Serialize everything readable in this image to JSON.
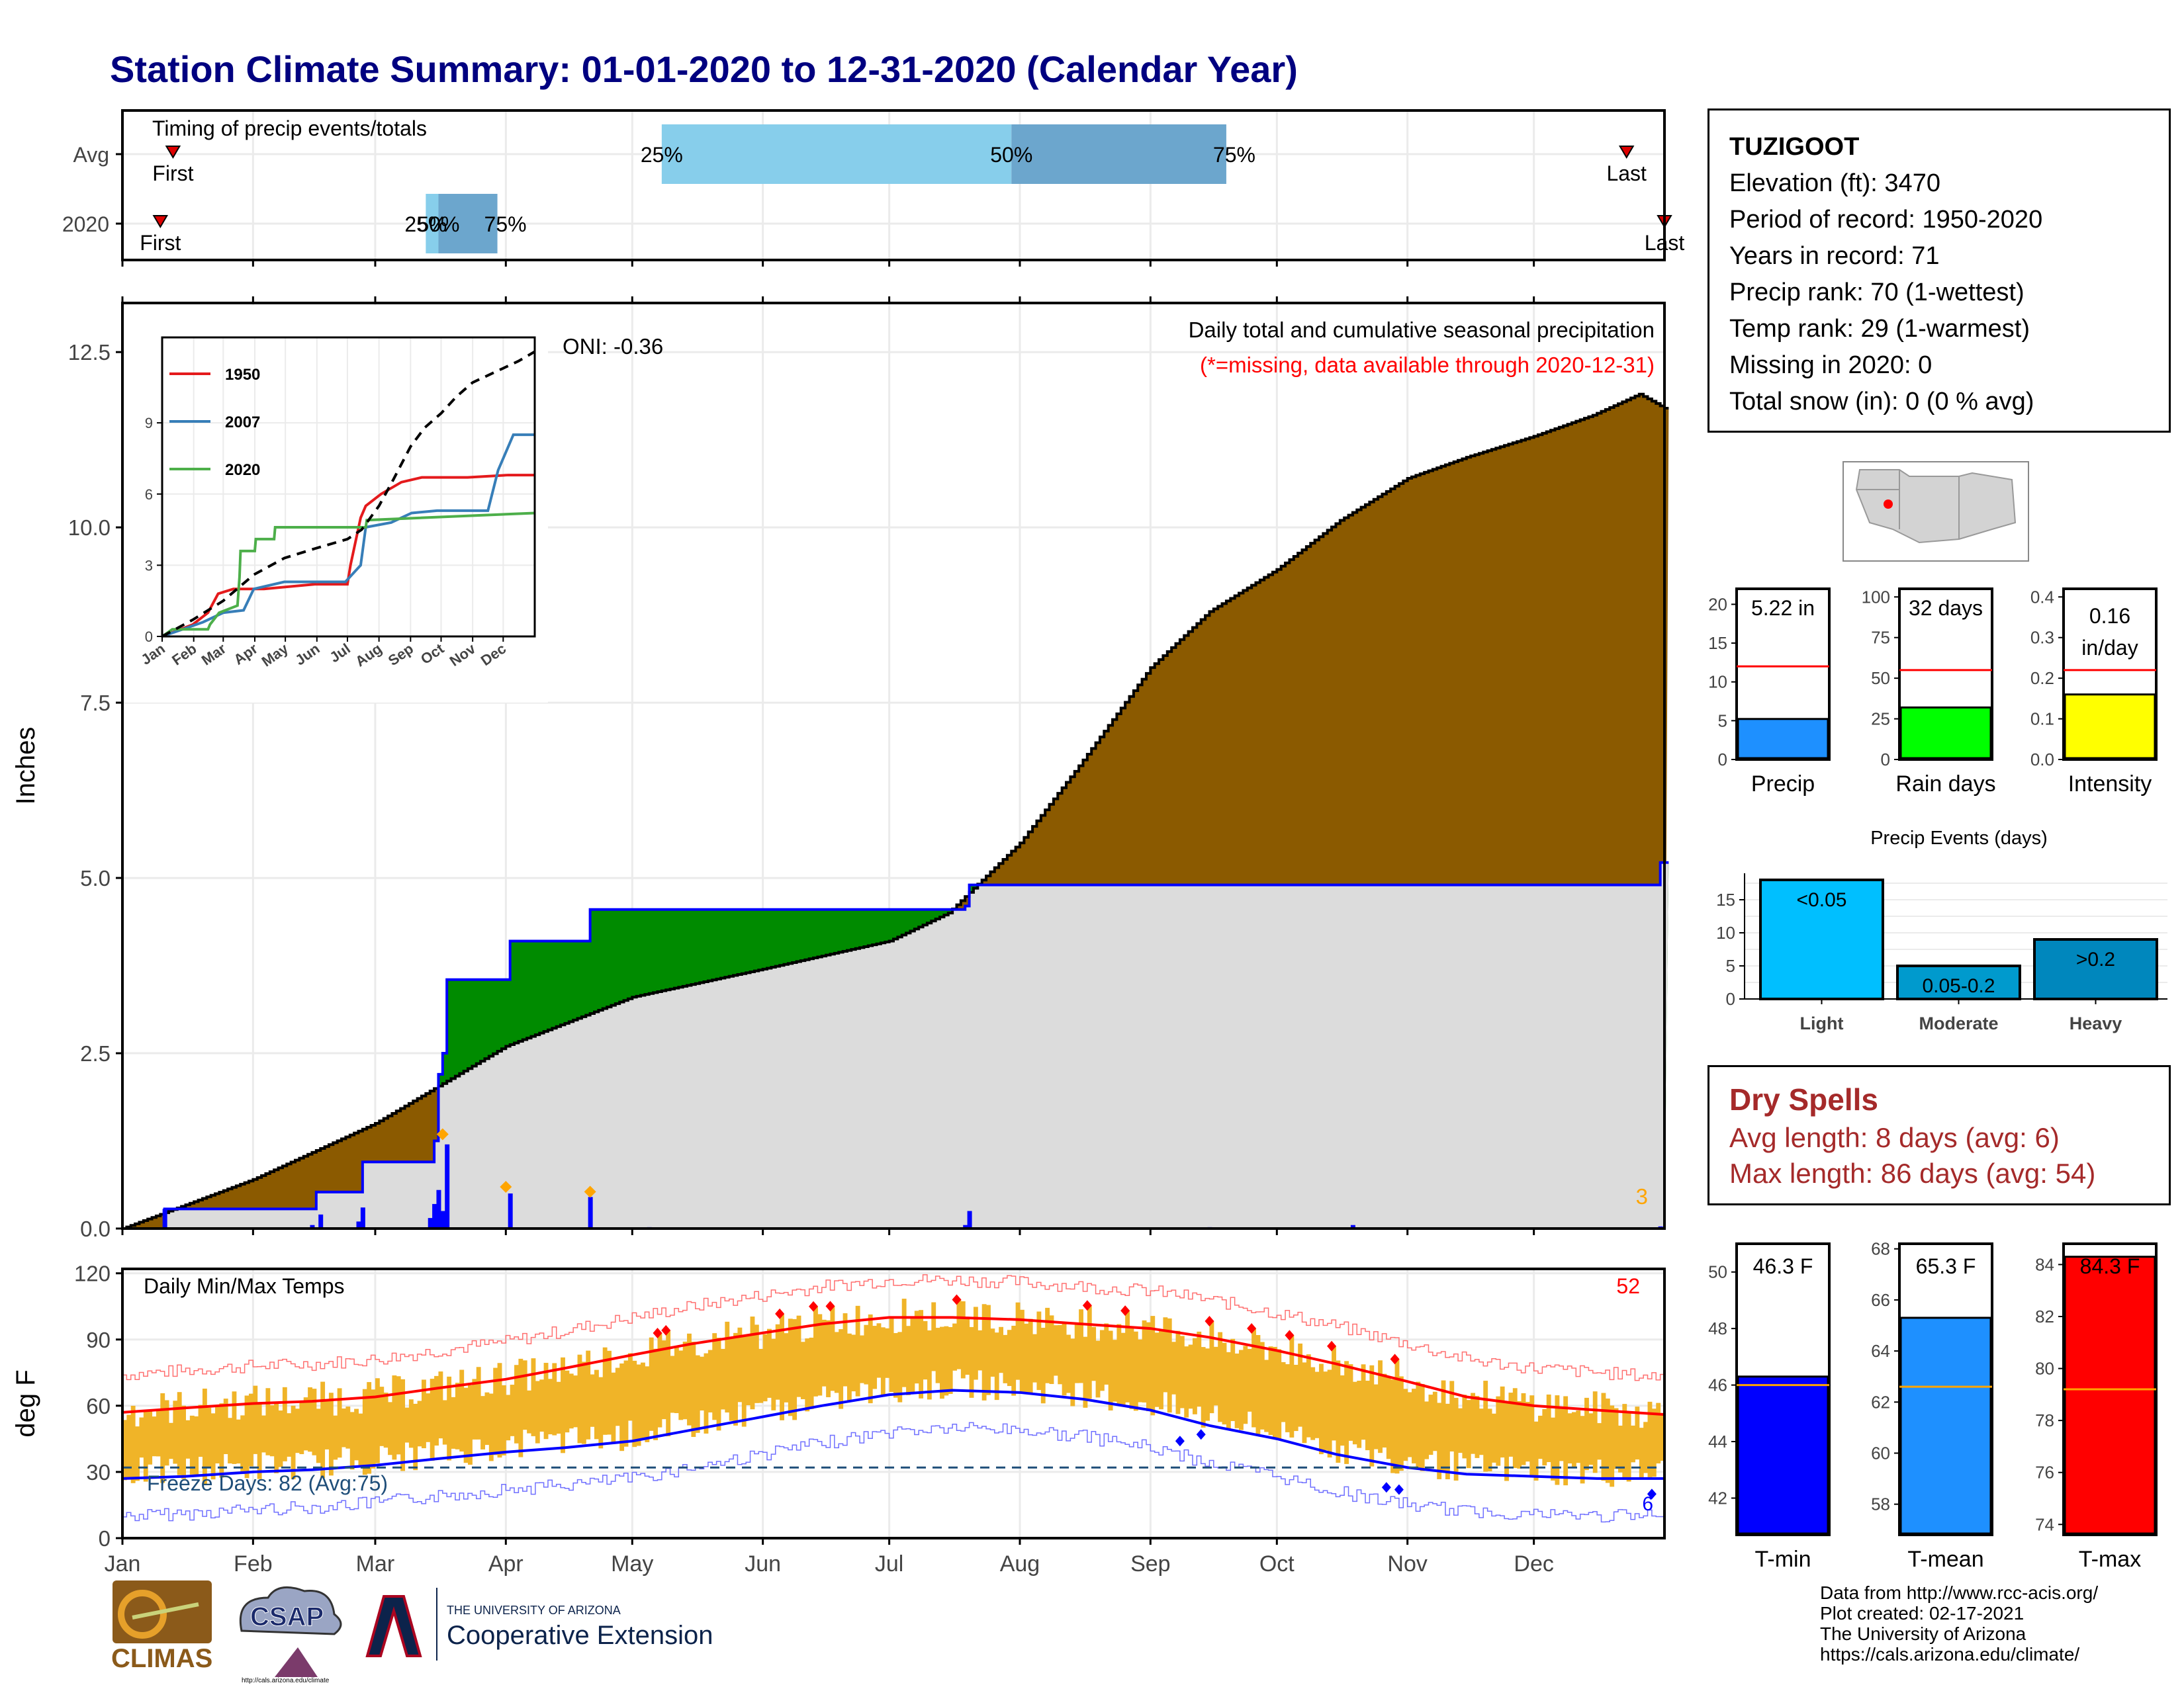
{
  "title": "Station Climate Summary: 01-01-2020 to 12-31-2020 (Calendar Year)",
  "colors": {
    "title": "#000080",
    "brown": "#8B5A00",
    "green": "#008B00",
    "gray_fill": "#DCDCDC",
    "blue": "#0000FF",
    "orange": "#F0B428",
    "red": "#FF0000",
    "light_blue": "#87CEEB",
    "steel_blue": "#6CA6CD"
  },
  "station": {
    "name": "TUZIGOOT",
    "lines": [
      "Elevation (ft): 3470",
      "Period of record: 1950-2020",
      "Years in record: 71",
      "Precip rank: 70 (1-wettest)",
      "Temp rank: 29 (1-warmest)",
      "Missing in 2020: 0",
      "Total snow (in): 0 (0 % avg)"
    ]
  },
  "timing": {
    "label": "Timing of precip events/totals",
    "rows": [
      "Avg",
      "2020"
    ],
    "avg": {
      "first_doy": 12,
      "q25_doy": 128,
      "q50_doy": 211,
      "q75_doy": 262,
      "last_doy": 357,
      "first": "First",
      "last": "Last",
      "p25": "25%",
      "p50": "50%",
      "p75": "75%"
    },
    "y2020": {
      "first_doy": 9,
      "q25_doy": 72,
      "q50_doy": 75,
      "q75_doy": 89,
      "last_doy": 366,
      "first": "First",
      "last": "Last",
      "p25": "25%",
      "p50": "50%",
      "p75": "75%"
    }
  },
  "months": [
    "Jan",
    "Feb",
    "Mar",
    "Apr",
    "May",
    "Jun",
    "Jul",
    "Aug",
    "Sep",
    "Oct",
    "Nov",
    "Dec"
  ],
  "precip": {
    "ylabel": "Inches",
    "yticks": [
      "0.0",
      "2.5",
      "5.0",
      "7.5",
      "10.0",
      "12.5"
    ],
    "ylim": [
      0,
      13.2
    ],
    "header": "Daily total and cumulative seasonal precipitation",
    "missing_note": "(*=missing, data available through 2020-12-31)",
    "oni": "ONI: -0.36",
    "count_label": "3",
    "avg_cumulative": [
      [
        0,
        0
      ],
      [
        31,
        0.7
      ],
      [
        60,
        1.5
      ],
      [
        91,
        2.6
      ],
      [
        121,
        3.3
      ],
      [
        152,
        3.7
      ],
      [
        182,
        4.1
      ],
      [
        196,
        4.5
      ],
      [
        213,
        5.5
      ],
      [
        227,
        6.6
      ],
      [
        244,
        8.0
      ],
      [
        258,
        8.8
      ],
      [
        274,
        9.4
      ],
      [
        289,
        10.1
      ],
      [
        305,
        10.7
      ],
      [
        319,
        11.0
      ],
      [
        335,
        11.3
      ],
      [
        349,
        11.6
      ],
      [
        360,
        11.9
      ],
      [
        366,
        11.7
      ]
    ],
    "obs_cumulative": [
      [
        0,
        0
      ],
      [
        10,
        0.28
      ],
      [
        45,
        0.28
      ],
      [
        46,
        0.52
      ],
      [
        55,
        0.52
      ],
      [
        57,
        0.95
      ],
      [
        73,
        0.95
      ],
      [
        74,
        1.25
      ],
      [
        75,
        2.2
      ],
      [
        76,
        2.5
      ],
      [
        77,
        3.55
      ],
      [
        91,
        3.55
      ],
      [
        92,
        4.1
      ],
      [
        110,
        4.1
      ],
      [
        111,
        4.55
      ],
      [
        170,
        4.55
      ],
      [
        200,
        4.6
      ],
      [
        201,
        4.9
      ],
      [
        365,
        5.22
      ]
    ],
    "daily_bars": [
      [
        10,
        0.28
      ],
      [
        45,
        0.05
      ],
      [
        47,
        0.2
      ],
      [
        56,
        0.1
      ],
      [
        57,
        0.3
      ],
      [
        73,
        0.15
      ],
      [
        74,
        0.35
      ],
      [
        75,
        0.55
      ],
      [
        76,
        0.25
      ],
      [
        77,
        1.2
      ],
      [
        92,
        0.5
      ],
      [
        111,
        0.45
      ],
      [
        125,
        0.02
      ],
      [
        200,
        0.05
      ],
      [
        201,
        0.25
      ],
      [
        258,
        0.02
      ],
      [
        292,
        0.05
      ],
      [
        365,
        0.03
      ]
    ],
    "dots": [
      [
        76,
        1.25
      ],
      [
        91,
        0.5
      ],
      [
        111,
        0.43
      ]
    ]
  },
  "inset": {
    "yticks": [
      "0",
      "3",
      "6",
      "9"
    ],
    "ylim": [
      0,
      12
    ],
    "months": [
      "Jan",
      "Feb",
      "Mar",
      "Apr",
      "May",
      "Jun",
      "Jul",
      "Aug",
      "Sep",
      "Oct",
      "Nov",
      "Dec"
    ],
    "series": [
      {
        "name": "1950",
        "color": "#E41A1C",
        "points": [
          [
            0,
            0
          ],
          [
            30,
            0.5
          ],
          [
            45,
            1.0
          ],
          [
            55,
            1.8
          ],
          [
            70,
            2.0
          ],
          [
            100,
            2.0
          ],
          [
            150,
            2.2
          ],
          [
            182,
            2.2
          ],
          [
            185,
            3.0
          ],
          [
            195,
            5.0
          ],
          [
            200,
            5.5
          ],
          [
            215,
            6.0
          ],
          [
            235,
            6.5
          ],
          [
            255,
            6.7
          ],
          [
            300,
            6.7
          ],
          [
            340,
            6.8
          ],
          [
            366,
            6.8
          ]
        ]
      },
      {
        "name": "2007",
        "color": "#377EB8",
        "points": [
          [
            0,
            0
          ],
          [
            40,
            0.6
          ],
          [
            60,
            1.0
          ],
          [
            80,
            1.1
          ],
          [
            90,
            2.0
          ],
          [
            120,
            2.3
          ],
          [
            180,
            2.3
          ],
          [
            195,
            3.0
          ],
          [
            200,
            4.6
          ],
          [
            225,
            4.8
          ],
          [
            245,
            5.2
          ],
          [
            270,
            5.3
          ],
          [
            320,
            5.3
          ],
          [
            330,
            7.0
          ],
          [
            345,
            8.5
          ],
          [
            366,
            8.5
          ]
        ]
      },
      {
        "name": "2020",
        "color": "#4DAF4A",
        "points": [
          [
            0,
            0
          ],
          [
            10,
            0.3
          ],
          [
            45,
            0.3
          ],
          [
            47,
            0.5
          ],
          [
            56,
            1.0
          ],
          [
            74,
            1.3
          ],
          [
            76,
            2.5
          ],
          [
            77,
            3.6
          ],
          [
            91,
            3.6
          ],
          [
            92,
            4.1
          ],
          [
            110,
            4.1
          ],
          [
            111,
            4.6
          ],
          [
            200,
            4.6
          ],
          [
            201,
            4.9
          ],
          [
            366,
            5.2
          ]
        ]
      }
    ],
    "avg_line": [
      [
        0,
        0
      ],
      [
        30,
        0.7
      ],
      [
        60,
        1.5
      ],
      [
        90,
        2.6
      ],
      [
        120,
        3.3
      ],
      [
        150,
        3.7
      ],
      [
        182,
        4.1
      ],
      [
        196,
        4.5
      ],
      [
        213,
        5.5
      ],
      [
        227,
        6.6
      ],
      [
        244,
        8.0
      ],
      [
        258,
        8.8
      ],
      [
        274,
        9.4
      ],
      [
        289,
        10.1
      ],
      [
        305,
        10.7
      ],
      [
        320,
        11.0
      ],
      [
        335,
        11.3
      ],
      [
        350,
        11.6
      ],
      [
        366,
        12.0
      ]
    ]
  },
  "temps": {
    "ylabel": "deg F",
    "label": "Daily Min/Max Temps",
    "yticks": [
      "0",
      "30",
      "60",
      "90",
      "120"
    ],
    "ylim": [
      0,
      122
    ],
    "freeze_label": "Freeze Days: 82 (Avg:75)",
    "hot_count": "52",
    "cold_count": "6",
    "freeze_line": 32,
    "avg_max": [
      [
        0,
        57
      ],
      [
        15,
        59
      ],
      [
        31,
        61
      ],
      [
        45,
        62
      ],
      [
        60,
        64
      ],
      [
        75,
        68
      ],
      [
        91,
        72
      ],
      [
        105,
        77
      ],
      [
        121,
        83
      ],
      [
        135,
        88
      ],
      [
        152,
        93
      ],
      [
        166,
        97
      ],
      [
        182,
        100
      ],
      [
        197,
        100
      ],
      [
        213,
        99
      ],
      [
        228,
        97
      ],
      [
        244,
        95
      ],
      [
        258,
        91
      ],
      [
        274,
        85
      ],
      [
        288,
        79
      ],
      [
        305,
        71
      ],
      [
        319,
        64
      ],
      [
        335,
        60
      ],
      [
        350,
        58
      ],
      [
        366,
        56
      ]
    ],
    "avg_min": [
      [
        0,
        27
      ],
      [
        15,
        28
      ],
      [
        31,
        30
      ],
      [
        45,
        31
      ],
      [
        60,
        33
      ],
      [
        75,
        36
      ],
      [
        91,
        39
      ],
      [
        105,
        41
      ],
      [
        121,
        44
      ],
      [
        135,
        49
      ],
      [
        152,
        55
      ],
      [
        166,
        60
      ],
      [
        182,
        65
      ],
      [
        197,
        67
      ],
      [
        213,
        66
      ],
      [
        228,
        63
      ],
      [
        244,
        58
      ],
      [
        258,
        51
      ],
      [
        274,
        45
      ],
      [
        288,
        38
      ],
      [
        305,
        32
      ],
      [
        319,
        29
      ],
      [
        335,
        28
      ],
      [
        350,
        27
      ],
      [
        366,
        27
      ]
    ]
  },
  "bars": {
    "precip": {
      "label": "Precip",
      "value": "5.22 in",
      "obs": 5.22,
      "avg": 12.0,
      "ylim": [
        0,
        22
      ],
      "ticks": [
        "0",
        "5",
        "10",
        "15",
        "20"
      ],
      "color": "#1E90FF"
    },
    "raindays": {
      "label": "Rain days",
      "value": "32 days",
      "obs": 32,
      "avg": 55,
      "ylim": [
        0,
        105
      ],
      "ticks": [
        "0",
        "25",
        "50",
        "75",
        "100"
      ],
      "color": "#00FF00"
    },
    "intensity": {
      "label": "Intensity",
      "value1": "0.16",
      "value2": "in/day",
      "obs": 0.16,
      "avg": 0.22,
      "ylim": [
        0,
        0.42
      ],
      "ticks": [
        "0.0",
        "0.1",
        "0.2",
        "0.3",
        "0.4"
      ],
      "color": "#FFFF00"
    }
  },
  "events": {
    "title": "Precip Events (days)",
    "categories": [
      "Light",
      "Moderate",
      "Heavy"
    ],
    "bar_labels": [
      "<0.05",
      "0.05-0.2",
      ">0.2"
    ],
    "values": [
      18,
      5,
      9
    ],
    "ticks": [
      "0",
      "5",
      "10",
      "15"
    ],
    "colors": [
      "#00BFFF",
      "#009ACD",
      "#0087BD"
    ]
  },
  "dry_spells": {
    "title": "Dry Spells",
    "avg_line": "Avg length: 8 days (avg: 6)",
    "max_line": "Max length: 86 days (avg: 54)"
  },
  "temp_bars": {
    "tmin": {
      "label": "T-min",
      "value": "46.3 F",
      "obs": 46.3,
      "avg": 46.0,
      "ylim": [
        40.7,
        51
      ],
      "ticks": [
        "42",
        "44",
        "46",
        "48",
        "50"
      ],
      "color": "#0000FF"
    },
    "tmean": {
      "label": "T-mean",
      "value": "65.3 F",
      "obs": 65.3,
      "avg": 62.6,
      "ylim": [
        56.8,
        68.2
      ],
      "ticks": [
        "58",
        "60",
        "62",
        "64",
        "66",
        "68"
      ],
      "color": "#1E90FF"
    },
    "tmax": {
      "label": "T-max",
      "value": "84.3 F",
      "obs": 84.3,
      "avg": 79.2,
      "ylim": [
        73.6,
        84.8
      ],
      "ticks": [
        "74",
        "76",
        "78",
        "80",
        "82",
        "84"
      ],
      "color": "#FF0000"
    }
  },
  "logos": {
    "climas": "CLIMAS",
    "csap": "CSAP",
    "csap_url": "http://cals.arizona.edu/climate",
    "ua_small": "THE UNIVERSITY OF ARIZONA",
    "ua_big": "Cooperative Extension"
  },
  "credits": [
    "Data from http://www.rcc-acis.org/",
    "Plot created: 02-17-2021",
    "The University of Arizona",
    "https://cals.arizona.edu/climate/"
  ]
}
